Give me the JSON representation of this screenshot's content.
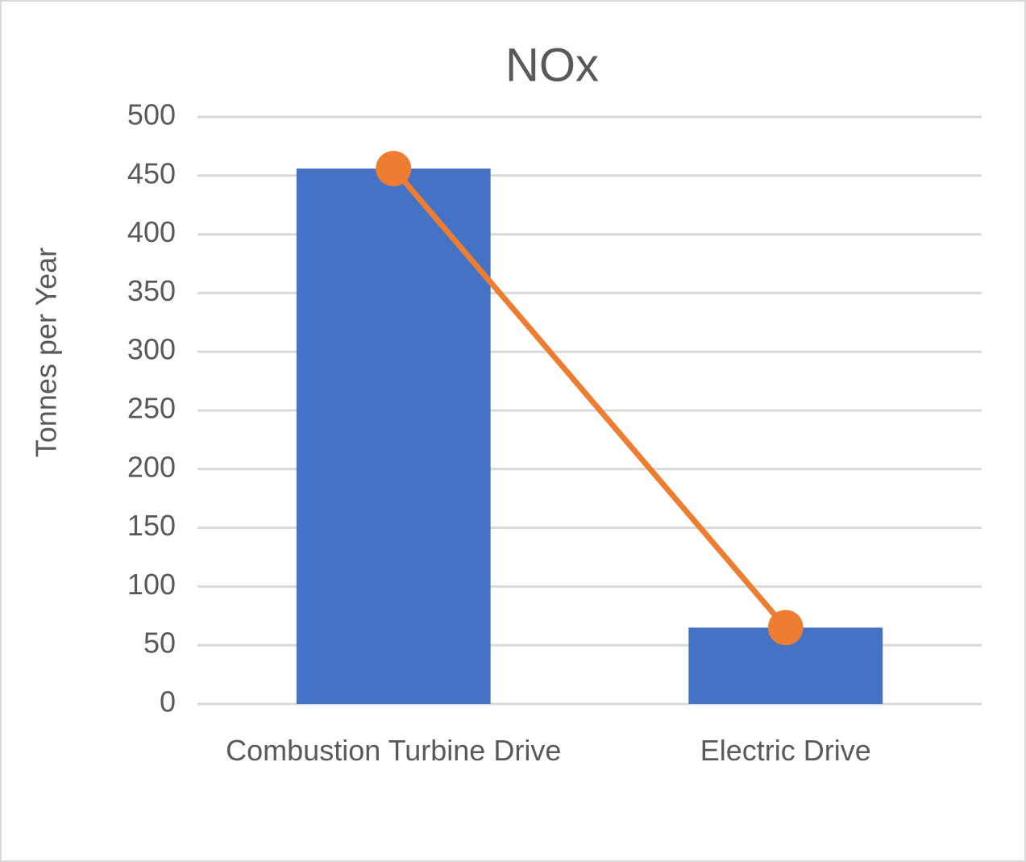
{
  "chart_data": {
    "type": "bar",
    "title": "NOx",
    "y_label": "Tonnes per Year",
    "categories": [
      "Combustion Turbine Drive",
      "Electric Drive"
    ],
    "series": [
      {
        "type": "bar",
        "color": "#4472c4",
        "values": [
          456,
          65
        ]
      },
      {
        "type": "line",
        "color": "#ed7d31",
        "values": [
          456,
          65
        ]
      }
    ],
    "ylim": [
      0,
      500
    ],
    "yticks": [
      0,
      50,
      100,
      150,
      200,
      250,
      300,
      350,
      400,
      450,
      500
    ],
    "grid": true
  }
}
